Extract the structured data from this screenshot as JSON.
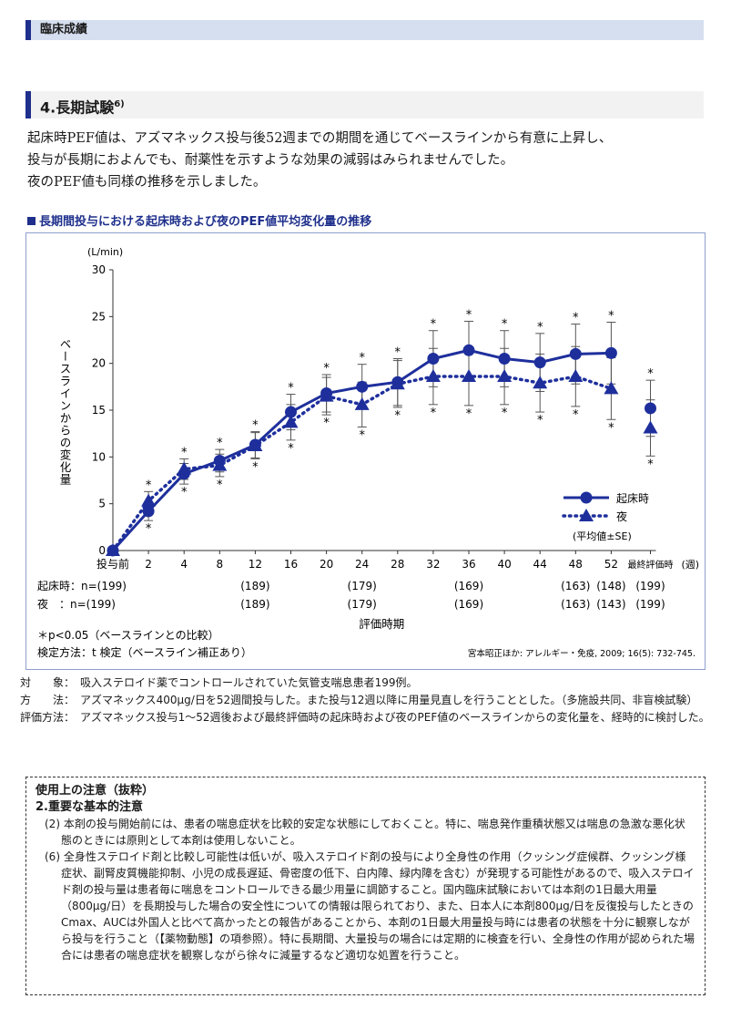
{
  "header": {
    "title": "臨床成績"
  },
  "section": {
    "title": "4.長期試験",
    "ref": "6)"
  },
  "intro": [
    "起床時PEF値は、アズマネックス投与後52週までの期間を通じてベースラインから有意に上昇し、",
    "投与が長期におよんでも、耐薬性を示すような効果の減弱はみられませんでした。",
    "夜のPEF値も同様の推移を示しました。"
  ],
  "chart_title": "長期間投与における起床時および夜のPEF値平均変化量の推移",
  "chart_data": {
    "type": "line",
    "x": [
      "投与前",
      "2",
      "4",
      "8",
      "12",
      "16",
      "20",
      "24",
      "28",
      "32",
      "36",
      "40",
      "44",
      "48",
      "52",
      "最終評価時"
    ],
    "x_unit": "(週)",
    "ylabel": "ベースラインからの変化量",
    "y_unit": "(L/min)",
    "xlabel": "評価時期",
    "ylim": [
      0,
      30
    ],
    "yticks": [
      0,
      5,
      10,
      15,
      20,
      25,
      30
    ],
    "series": [
      {
        "name": "起床時",
        "marker": "circle",
        "line": "solid",
        "values": [
          0,
          4.2,
          8.2,
          9.6,
          11.3,
          14.8,
          16.8,
          17.5,
          18.0,
          20.5,
          21.4,
          20.5,
          20.1,
          21.0,
          21.1,
          15.2
        ],
        "se": [
          0,
          1.0,
          1.1,
          1.2,
          1.4,
          1.9,
          2.0,
          2.4,
          2.5,
          3.0,
          3.1,
          3.0,
          3.1,
          3.2,
          3.3,
          3.0
        ]
      },
      {
        "name": "夜",
        "marker": "triangle",
        "line": "dotted",
        "values": [
          0,
          5.3,
          8.7,
          9.1,
          11.2,
          13.7,
          16.5,
          15.6,
          17.8,
          18.6,
          18.6,
          18.6,
          17.9,
          18.6,
          17.3,
          13.1
        ],
        "se": [
          0,
          1.0,
          1.1,
          1.2,
          1.4,
          1.9,
          2.0,
          2.4,
          2.5,
          3.0,
          3.1,
          3.0,
          3.1,
          3.2,
          3.3,
          3.0
        ]
      }
    ],
    "significance_marker": "*",
    "legend_note": "(平均値±SE)",
    "n_label_morning": "起床時：n=(199)",
    "n_label_night": "夜　：n=(199)",
    "n_morning": [
      {
        "x": "12",
        "n": "(189)"
      },
      {
        "x": "24",
        "n": "(179)"
      },
      {
        "x": "36",
        "n": "(169)"
      },
      {
        "x": "48",
        "n": "(163)"
      },
      {
        "x": "52",
        "n": "(148)"
      },
      {
        "x": "最終評価時",
        "n": "(199)"
      }
    ],
    "n_night": [
      {
        "x": "12",
        "n": "(189)"
      },
      {
        "x": "24",
        "n": "(179)"
      },
      {
        "x": "36",
        "n": "(169)"
      },
      {
        "x": "48",
        "n": "(163)"
      },
      {
        "x": "52",
        "n": "(143)"
      },
      {
        "x": "最終評価時",
        "n": "(199)"
      }
    ],
    "footnote1": "＊p<0.05（ベースラインとの比較）",
    "footnote2": "検定方法：t 検定（ベースライン補正あり）",
    "citation": "宮本昭正ほか: アレルギー・免疫, 2009; 16(5): 732-745."
  },
  "notes": [
    {
      "label": "対　　象：",
      "value": "吸入ステロイド薬でコントロールされていた気管支喘息患者199例。"
    },
    {
      "label": "方　　法：",
      "value": "アズマネックス400μg/日を52週間投与した。また投与12週以降に用量見直しを行うこととした。（多施設共同、非盲検試験）"
    },
    {
      "label": "評価方法：",
      "value": "アズマネックス投与1～52週後および最終評価時の起床時および夜のPEF値のベースラインからの変化量を、経時的に検討した。"
    }
  ],
  "caution": {
    "title": "使用上の注意（抜粋）",
    "subtitle": "2.重要な基本的注意",
    "items": [
      "(2) 本剤の投与開始前には、患者の喘息症状を比較的安定な状態にしておくこと。特に、喘息発作重積状態又は喘息の急激な悪化状態のときには原則として本剤は使用しないこと。",
      "(6) 全身性ステロイド剤と比較し可能性は低いが、吸入ステロイド剤の投与により全身性の作用（クッシング症候群、クッシング様症状、副腎皮質機能抑制、小児の成長遅延、骨密度の低下、白内障、緑内障を含む）が発現する可能性があるので、吸入ステロイド剤の投与量は患者毎に喘息をコントロールできる最少用量に調節すること。国内臨床試験においては本剤の1日最大用量（800μg/日）を長期投与した場合の安全性についての情報は限られており、また、日本人に本剤800μg/日を反復投与したときのCmax、AUCは外国人と比べて高かったとの報告があることから、本剤の1日最大用量投与時には患者の状態を十分に観察しながら投与を行うこと（【薬物動態】の項参照）。特に長期間、大量投与の場合には定期的に検査を行い、全身性の作用が認められた場合には患者の喘息症状を観察しながら徐々に減量するなど適切な処置を行うこと。"
    ]
  }
}
